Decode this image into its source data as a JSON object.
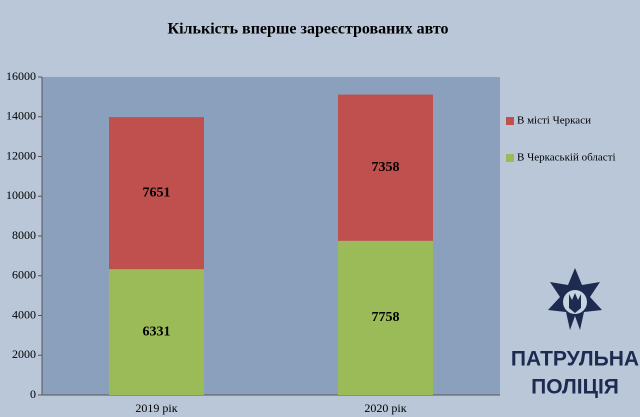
{
  "chart_data": {
    "type": "stacked-bar",
    "title": "Кількість вперше зареєстрованих авто",
    "categories": [
      "2019 рік",
      "2020 рік"
    ],
    "series": [
      {
        "name": "В Черкаській області",
        "color": "#9bbb59",
        "values": [
          6331,
          7758
        ]
      },
      {
        "name": "В місті Черкаси",
        "color": "#c0504d",
        "values": [
          7651,
          7358
        ]
      }
    ],
    "ylim": [
      0,
      16000
    ],
    "yticks": [
      0,
      2000,
      4000,
      6000,
      8000,
      10000,
      12000,
      14000,
      16000
    ],
    "legend": "right"
  },
  "logo_text": [
    "ПАТРУЛЬНА",
    "ПОЛІЦІЯ"
  ]
}
